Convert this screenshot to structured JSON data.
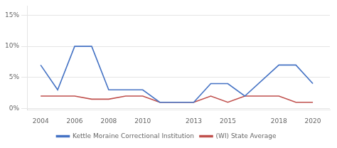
{
  "chart_data": {
    "type": "line",
    "x": [
      2004,
      2005,
      2006,
      2007,
      2008,
      2009,
      2010,
      2011,
      2013,
      2014,
      2015,
      2016,
      2018,
      2019,
      2020
    ],
    "series": [
      {
        "name": "Kettle Moraine Correctional Institution",
        "color": "#4472C4",
        "values": [
          0.07,
          0.03,
          0.1,
          0.1,
          0.03,
          0.03,
          0.03,
          0.01,
          0.01,
          0.04,
          0.04,
          0.02,
          0.07,
          0.07,
          0.04
        ]
      },
      {
        "name": "(WI) State Average",
        "color": "#C0504D",
        "values": [
          0.02,
          0.02,
          0.02,
          0.015,
          0.015,
          0.02,
          0.02,
          0.01,
          0.01,
          0.02,
          0.01,
          0.02,
          0.02,
          0.01,
          0.01
        ]
      }
    ],
    "xlim": [
      2003.2,
      2021.0
    ],
    "xticks": [
      2004,
      2006,
      2008,
      2010,
      2013,
      2015,
      2018,
      2020
    ],
    "ylim": [
      -0.002,
      0.165
    ],
    "yticks": [
      {
        "value": 0.0,
        "label": "0%"
      },
      {
        "value": 0.05,
        "label": "5%"
      },
      {
        "value": 0.1,
        "label": "10%"
      },
      {
        "value": 0.15,
        "label": "15%"
      }
    ],
    "grid": "y",
    "legend": "bottom"
  }
}
